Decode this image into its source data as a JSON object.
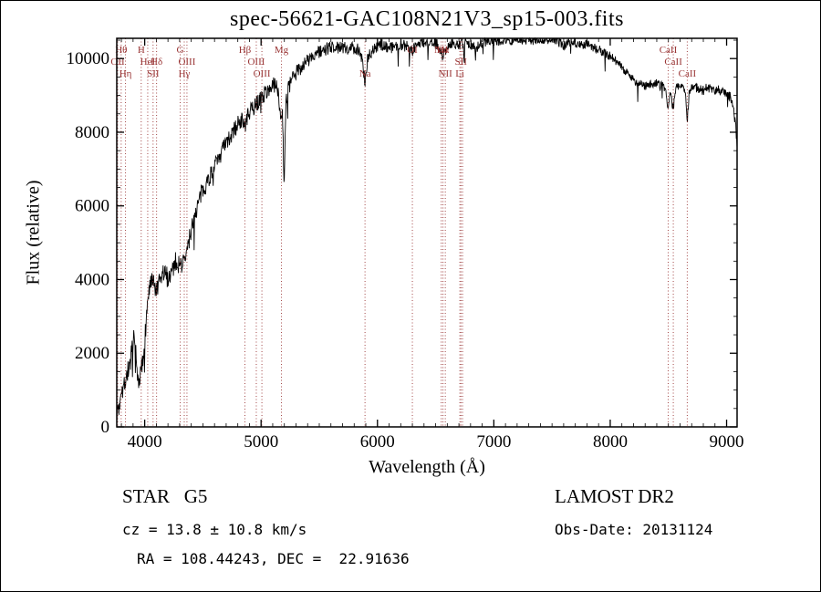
{
  "chart_data": {
    "type": "line",
    "title": "spec-56621-GAC108N21V3_sp15-003.fits",
    "xlabel": "Wavelength (Å)",
    "ylabel": "Flux (relative)",
    "xlim": [
      3760,
      9090
    ],
    "ylim": [
      0,
      10550
    ],
    "grid": false,
    "legend": "none",
    "background": "#ffffff",
    "frame_color": "#000000",
    "line_color": "#000000",
    "spectral_line_color": "#993333",
    "x_major_ticks": [
      4000,
      5000,
      6000,
      7000,
      8000,
      9000
    ],
    "y_major_ticks": [
      0,
      2000,
      4000,
      6000,
      8000,
      10000
    ],
    "x_minor_step": 100,
    "y_minor_step": 500,
    "n_samples": 1500,
    "noise_seed": 7,
    "spectrum_envelope": [
      [
        3760,
        150
      ],
      [
        3770,
        620
      ],
      [
        3780,
        420
      ],
      [
        3790,
        900
      ],
      [
        3800,
        1120
      ],
      [
        3815,
        1000
      ],
      [
        3830,
        1260
      ],
      [
        3845,
        1400
      ],
      [
        3860,
        1560
      ],
      [
        3875,
        1760
      ],
      [
        3890,
        2000
      ],
      [
        3905,
        2320
      ],
      [
        3920,
        2120
      ],
      [
        3932,
        1500
      ],
      [
        3945,
        1260
      ],
      [
        3958,
        1360
      ],
      [
        3972,
        1520
      ],
      [
        3986,
        1900
      ],
      [
        4000,
        2320
      ],
      [
        4015,
        3000
      ],
      [
        4030,
        3560
      ],
      [
        4045,
        3800
      ],
      [
        4060,
        3900
      ],
      [
        4075,
        3840
      ],
      [
        4090,
        3760
      ],
      [
        4105,
        3660
      ],
      [
        4120,
        3820
      ],
      [
        4140,
        4000
      ],
      [
        4160,
        4180
      ],
      [
        4180,
        4120
      ],
      [
        4200,
        4050
      ],
      [
        4220,
        4160
      ],
      [
        4240,
        4300
      ],
      [
        4260,
        4460
      ],
      [
        4280,
        4520
      ],
      [
        4300,
        4340
      ],
      [
        4320,
        4440
      ],
      [
        4340,
        4500
      ],
      [
        4360,
        4700
      ],
      [
        4385,
        5120
      ],
      [
        4410,
        5520
      ],
      [
        4435,
        5800
      ],
      [
        4460,
        6060
      ],
      [
        4485,
        6300
      ],
      [
        4510,
        6500
      ],
      [
        4535,
        6660
      ],
      [
        4560,
        6800
      ],
      [
        4585,
        6950
      ],
      [
        4615,
        7150
      ],
      [
        4645,
        7350
      ],
      [
        4675,
        7550
      ],
      [
        4705,
        7700
      ],
      [
        4735,
        7860
      ],
      [
        4765,
        8020
      ],
      [
        4795,
        8200
      ],
      [
        4825,
        8340
      ],
      [
        4848,
        8280
      ],
      [
        4862,
        8100
      ],
      [
        4880,
        8400
      ],
      [
        4905,
        8540
      ],
      [
        4930,
        8650
      ],
      [
        4955,
        8750
      ],
      [
        4980,
        8850
      ],
      [
        5005,
        8950
      ],
      [
        5030,
        9040
      ],
      [
        5060,
        9140
      ],
      [
        5090,
        9240
      ],
      [
        5120,
        9300
      ],
      [
        5148,
        9120
      ],
      [
        5168,
        8400
      ],
      [
        5183,
        8600
      ],
      [
        5198,
        6600
      ],
      [
        5213,
        8800
      ],
      [
        5235,
        9180
      ],
      [
        5260,
        9380
      ],
      [
        5285,
        9540
      ],
      [
        5310,
        9650
      ],
      [
        5340,
        9760
      ],
      [
        5370,
        9860
      ],
      [
        5400,
        9950
      ],
      [
        5440,
        10050
      ],
      [
        5480,
        10140
      ],
      [
        5520,
        10200
      ],
      [
        5560,
        10250
      ],
      [
        5600,
        10300
      ],
      [
        5640,
        10330
      ],
      [
        5680,
        10300
      ],
      [
        5720,
        10270
      ],
      [
        5760,
        10300
      ],
      [
        5800,
        10280
      ],
      [
        5840,
        10250
      ],
      [
        5868,
        10020
      ],
      [
        5893,
        9320
      ],
      [
        5916,
        10000
      ],
      [
        5950,
        10200
      ],
      [
        5990,
        10300
      ],
      [
        6030,
        10380
      ],
      [
        6070,
        10350
      ],
      [
        6110,
        10300
      ],
      [
        6150,
        10350
      ],
      [
        6190,
        10400
      ],
      [
        6230,
        10350
      ],
      [
        6270,
        10300
      ],
      [
        6300,
        10200
      ],
      [
        6330,
        10350
      ],
      [
        6370,
        10420
      ],
      [
        6410,
        10450
      ],
      [
        6450,
        10400
      ],
      [
        6490,
        10430
      ],
      [
        6530,
        10320
      ],
      [
        6563,
        10050
      ],
      [
        6600,
        10350
      ],
      [
        6640,
        10430
      ],
      [
        6680,
        10400
      ],
      [
        6720,
        10380
      ],
      [
        6760,
        10430
      ],
      [
        6800,
        10400
      ],
      [
        6840,
        10280
      ],
      [
        6880,
        10380
      ],
      [
        6920,
        10450
      ],
      [
        6960,
        10500
      ],
      [
        7000,
        10520
      ],
      [
        7050,
        10480
      ],
      [
        7100,
        10520
      ],
      [
        7150,
        10480
      ],
      [
        7200,
        10520
      ],
      [
        7250,
        10490
      ],
      [
        7300,
        10530
      ],
      [
        7350,
        10490
      ],
      [
        7400,
        10530
      ],
      [
        7450,
        10500
      ],
      [
        7500,
        10520
      ],
      [
        7550,
        10480
      ],
      [
        7600,
        10350
      ],
      [
        7650,
        10450
      ],
      [
        7700,
        10420
      ],
      [
        7750,
        10380
      ],
      [
        7800,
        10400
      ],
      [
        7850,
        10320
      ],
      [
        7900,
        10250
      ],
      [
        7950,
        10160
      ],
      [
        8000,
        10060
      ],
      [
        8050,
        9930
      ],
      [
        8100,
        9780
      ],
      [
        8150,
        9600
      ],
      [
        8200,
        9430
      ],
      [
        8250,
        9320
      ],
      [
        8300,
        9260
      ],
      [
        8350,
        9300
      ],
      [
        8400,
        9340
      ],
      [
        8450,
        9250
      ],
      [
        8480,
        9100
      ],
      [
        8498,
        8500
      ],
      [
        8515,
        9150
      ],
      [
        8542,
        8600
      ],
      [
        8560,
        9180
      ],
      [
        8590,
        9280
      ],
      [
        8620,
        9230
      ],
      [
        8645,
        9100
      ],
      [
        8662,
        8300
      ],
      [
        8680,
        9150
      ],
      [
        8720,
        9230
      ],
      [
        8760,
        9180
      ],
      [
        8800,
        9140
      ],
      [
        8840,
        9220
      ],
      [
        8880,
        9180
      ],
      [
        8920,
        9140
      ],
      [
        8960,
        9120
      ],
      [
        9000,
        9100
      ],
      [
        9030,
        8950
      ],
      [
        9060,
        8600
      ],
      [
        9080,
        8100
      ],
      [
        9090,
        7600
      ]
    ],
    "noise_profile": [
      [
        3760,
        330
      ],
      [
        3900,
        390
      ],
      [
        4000,
        360
      ],
      [
        4200,
        330
      ],
      [
        4400,
        310
      ],
      [
        4700,
        290
      ],
      [
        5000,
        260
      ],
      [
        5300,
        240
      ],
      [
        5600,
        220
      ],
      [
        5900,
        210
      ],
      [
        6200,
        190
      ],
      [
        6500,
        180
      ],
      [
        6800,
        170
      ],
      [
        7100,
        160
      ],
      [
        7400,
        150
      ],
      [
        7700,
        150
      ],
      [
        8000,
        140
      ],
      [
        8300,
        140
      ],
      [
        8600,
        150
      ],
      [
        8900,
        160
      ],
      [
        9090,
        170
      ]
    ],
    "spectral_lines": [
      {
        "label": "OII",
        "wl": 3727,
        "row": 1
      },
      {
        "label": "Hθ",
        "wl": 3798,
        "row": 0
      },
      {
        "label": "Hη",
        "wl": 3835,
        "row": 2
      },
      {
        "label": "H",
        "wl": 3970,
        "row": 0
      },
      {
        "label": "HeI",
        "wl": 4026,
        "row": 1
      },
      {
        "label": "SII",
        "wl": 4072,
        "row": 2
      },
      {
        "label": "Hδ",
        "wl": 4102,
        "row": 1
      },
      {
        "label": "G",
        "wl": 4305,
        "row": 0
      },
      {
        "label": "Hγ",
        "wl": 4340,
        "row": 2
      },
      {
        "label": "OIII",
        "wl": 4363,
        "row": 1
      },
      {
        "label": "Hβ",
        "wl": 4861,
        "row": 0
      },
      {
        "label": "OIII",
        "wl": 4959,
        "row": 1
      },
      {
        "label": "OIII",
        "wl": 5007,
        "row": 2
      },
      {
        "label": "Mg",
        "wl": 5175,
        "row": 0
      },
      {
        "label": "Na",
        "wl": 5893,
        "row": 2
      },
      {
        "label": "OI",
        "wl": 6300,
        "row": 0
      },
      {
        "label": "NII",
        "wl": 6548,
        "row": 0
      },
      {
        "label": "Hα",
        "wl": 6563,
        "row": 0
      },
      {
        "label": "NII",
        "wl": 6583,
        "row": 2
      },
      {
        "label": "Li",
        "wl": 6708,
        "row": 2
      },
      {
        "label": "SII",
        "wl": 6717,
        "row": 1
      },
      {
        "label": "",
        "wl": 6731,
        "row": 1
      },
      {
        "label": "CaII",
        "wl": 8498,
        "row": 0
      },
      {
        "label": "CaII",
        "wl": 8542,
        "row": 1
      },
      {
        "label": "CaII",
        "wl": 8662,
        "row": 2
      }
    ]
  },
  "footer": {
    "class_label": "STAR   G5",
    "survey": "LAMOST DR2",
    "velocity": "cz = 13.8 ± 10.8 km/s",
    "obs_date": "Obs-Date: 20131124",
    "coordinates": "RA = 108.44243, DEC =  22.91636"
  }
}
